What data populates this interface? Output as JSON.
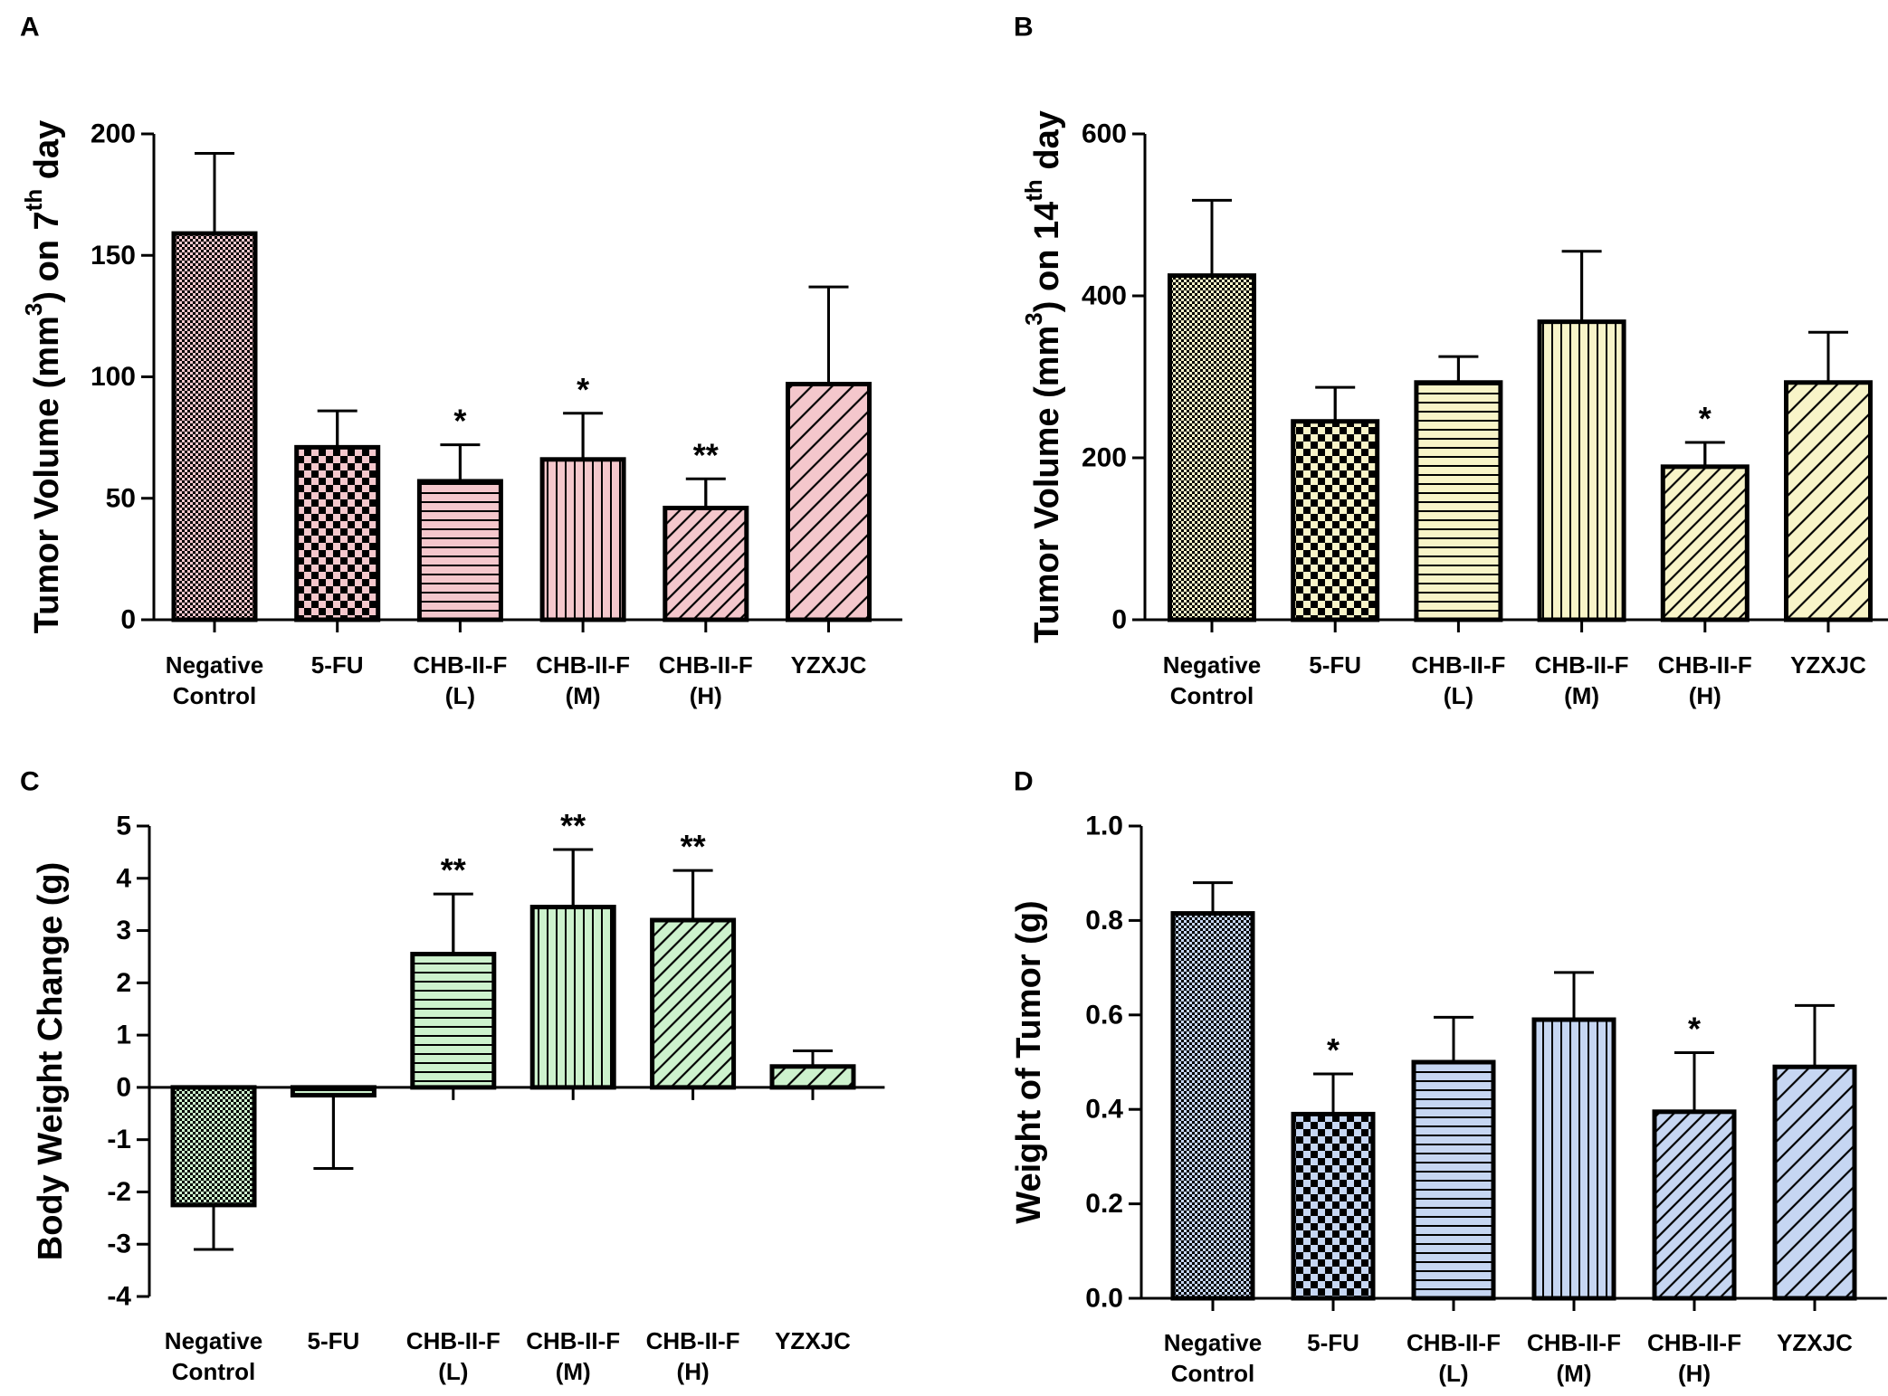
{
  "chart_data": [
    {
      "panel": "A",
      "type": "bar",
      "ylabel": "Tumor Volume (mm³) on 7th day",
      "ylabel_parts": {
        "prefix": "Tumor Volume (mm",
        "sup1": "3",
        "middle": ") on 7",
        "sup2": "th",
        "suffix": " day"
      },
      "categories": [
        [
          "Negative",
          "Control"
        ],
        [
          "5-FU"
        ],
        [
          "CHB-II-F",
          "(L)"
        ],
        [
          "CHB-II-F",
          "(M)"
        ],
        [
          "CHB-II-F",
          "(H)"
        ],
        [
          "YZXJC"
        ]
      ],
      "values": [
        159,
        71,
        57,
        66,
        46,
        97
      ],
      "errors": [
        33,
        15,
        15,
        19,
        12,
        40
      ],
      "significance": [
        "",
        "",
        "*",
        "*",
        "**",
        ""
      ],
      "ylim": [
        0,
        200
      ],
      "yticks": [
        0,
        50,
        100,
        150,
        200
      ],
      "bar_color": "#f4c7cc",
      "patterns": [
        "dots",
        "checker",
        "hlines",
        "vlines",
        "diag",
        "diag-wide"
      ]
    },
    {
      "panel": "B",
      "type": "bar",
      "ylabel": "Tumor Volume (mm³) on 14th day",
      "ylabel_parts": {
        "prefix": "Tumor Volume (mm",
        "sup1": "3",
        "middle": ") on 14",
        "sup2": "th",
        "suffix": " day"
      },
      "categories": [
        [
          "Negative",
          "Control"
        ],
        [
          "5-FU"
        ],
        [
          "CHB-II-F",
          "(L)"
        ],
        [
          "CHB-II-F",
          "(M)"
        ],
        [
          "CHB-II-F",
          "(H)"
        ],
        [
          "YZXJC"
        ]
      ],
      "values": [
        425,
        245,
        293,
        368,
        189,
        293
      ],
      "errors": [
        93,
        42,
        32,
        87,
        30,
        62
      ],
      "significance": [
        "",
        "",
        "",
        "",
        "*",
        ""
      ],
      "ylim": [
        0,
        600
      ],
      "yticks": [
        0,
        200,
        400,
        600
      ],
      "bar_color": "#f8f4c8",
      "patterns": [
        "dots",
        "checker",
        "hlines",
        "vlines",
        "diag",
        "diag-wide"
      ]
    },
    {
      "panel": "C",
      "type": "bar",
      "ylabel": "Body Weight Change (g)",
      "categories": [
        [
          "Negative",
          "Control"
        ],
        [
          "5-FU"
        ],
        [
          "CHB-II-F",
          "(L)"
        ],
        [
          "CHB-II-F",
          "(M)"
        ],
        [
          "CHB-II-F",
          "(H)"
        ],
        [
          "YZXJC"
        ]
      ],
      "values": [
        -2.25,
        -0.15,
        2.55,
        3.45,
        3.2,
        0.4
      ],
      "errors": [
        0.85,
        1.4,
        1.15,
        1.1,
        0.95,
        0.3
      ],
      "significance": [
        "",
        "",
        "**",
        "**",
        "**",
        ""
      ],
      "ylim": [
        -4,
        5
      ],
      "yticks": [
        -4,
        -3,
        -2,
        -1,
        0,
        1,
        2,
        3,
        4,
        5
      ],
      "bar_color": "#cdf2cd",
      "patterns": [
        "dots",
        "hlines",
        "hlines",
        "vlines",
        "diag",
        "diag-wide"
      ]
    },
    {
      "panel": "D",
      "type": "bar",
      "ylabel": "Weight of Tumor (g)",
      "categories": [
        [
          "Negative",
          "Control"
        ],
        [
          "5-FU"
        ],
        [
          "CHB-II-F",
          "(L)"
        ],
        [
          "CHB-II-F",
          "(M)"
        ],
        [
          "CHB-II-F",
          "(H)"
        ],
        [
          "YZXJC"
        ]
      ],
      "values": [
        0.815,
        0.39,
        0.5,
        0.59,
        0.395,
        0.49
      ],
      "errors": [
        0.065,
        0.085,
        0.095,
        0.1,
        0.125,
        0.13
      ],
      "significance": [
        "",
        "*",
        "",
        "",
        "*",
        ""
      ],
      "ylim": [
        0,
        1.0
      ],
      "yticks": [
        0.0,
        0.2,
        0.4,
        0.6,
        0.8,
        1.0
      ],
      "ytick_decimals": 1,
      "bar_color": "#c6d6f2",
      "patterns": [
        "dots",
        "checker",
        "hlines",
        "vlines",
        "diag",
        "diag-wide"
      ]
    }
  ]
}
